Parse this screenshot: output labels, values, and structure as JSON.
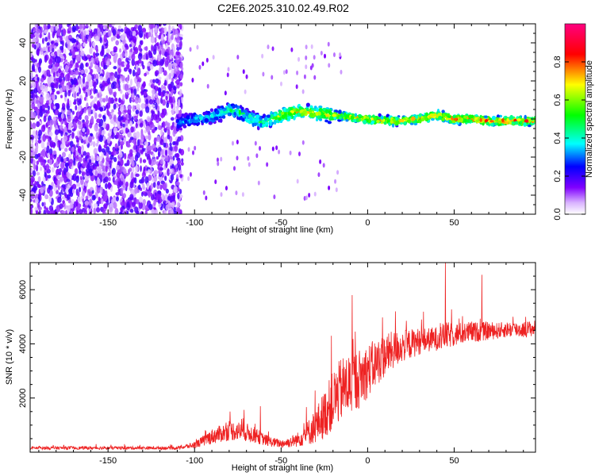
{
  "title": "C2E6.2025.310.02.49.R02",
  "chart_data": [
    {
      "type": "heatmap",
      "title": "C2E6.2025.310.02.49.R02",
      "xlabel": "Height of straight line (km)",
      "ylabel": "Frequency (Hz)",
      "xlim": [
        -195,
        97
      ],
      "ylim": [
        -50,
        50
      ],
      "xticks": [
        -150,
        -100,
        -50,
        0,
        50
      ],
      "yticks": [
        -40,
        -20,
        0,
        20,
        40
      ],
      "colorbar": {
        "label": "Normalized spectral amplitude",
        "range": [
          0.0,
          1.0
        ],
        "ticks": [
          0.0,
          0.2,
          0.4,
          0.6,
          0.8
        ],
        "tick_labels": [
          "0.0",
          "0.2",
          "0.4",
          "0.6",
          "0.8"
        ],
        "colors": [
          "#ffffff",
          "#d9b3ff",
          "#8000ff",
          "#0000ff",
          "#00ffff",
          "#00ff00",
          "#ffff00",
          "#ff0000",
          "#ff0080"
        ]
      },
      "noise_region": {
        "x_from": -195,
        "x_to": -107,
        "amplitude": 0.15
      },
      "trace": {
        "x": [
          -110,
          -100,
          -90,
          -80,
          -75,
          -70,
          -60,
          -50,
          -40,
          -30,
          -20,
          -10,
          0,
          10,
          20,
          30,
          40,
          50,
          60,
          70,
          80,
          90,
          97
        ],
        "y": [
          -2,
          0,
          1,
          5,
          4,
          1,
          -2,
          2,
          4,
          3,
          2,
          1,
          0,
          -1,
          -1,
          0,
          2,
          0,
          0,
          -1,
          -1,
          -1,
          -1
        ],
        "amplitude": [
          0.35,
          0.4,
          0.45,
          0.5,
          0.5,
          0.5,
          0.55,
          0.7,
          0.75,
          0.7,
          0.75,
          0.75,
          0.8,
          0.8,
          0.8,
          0.82,
          0.85,
          0.85,
          0.85,
          0.85,
          0.85,
          0.85,
          0.85
        ]
      }
    },
    {
      "type": "line",
      "xlabel": "Height of straight line (km)",
      "ylabel": "SNR (10 * v/v)",
      "xlim": [
        -195,
        97
      ],
      "ylim": [
        0,
        7000
      ],
      "xticks": [
        -150,
        -100,
        -50,
        0,
        50
      ],
      "yticks": [
        2000,
        4000,
        6000
      ],
      "series": [
        {
          "name": "SNR",
          "color": "#ee2222",
          "x": [
            -195,
            -150,
            -110,
            -100,
            -95,
            -90,
            -85,
            -80,
            -75,
            -70,
            -65,
            -60,
            -55,
            -50,
            -45,
            -40,
            -35,
            -30,
            -25,
            -20,
            -15,
            -10,
            -5,
            0,
            5,
            10,
            15,
            20,
            25,
            30,
            35,
            40,
            45,
            50,
            55,
            60,
            65,
            70,
            75,
            80,
            85,
            90,
            97
          ],
          "values": [
            150,
            150,
            150,
            250,
            400,
            550,
            650,
            750,
            750,
            700,
            600,
            450,
            350,
            300,
            350,
            450,
            650,
            900,
            1300,
            1800,
            2200,
            2400,
            2600,
            2900,
            3200,
            3500,
            3700,
            3850,
            3950,
            4050,
            4100,
            4150,
            4250,
            4300,
            4350,
            4400,
            4400,
            4450,
            4450,
            4500,
            4500,
            4500,
            4550
          ],
          "spread": [
            60,
            60,
            60,
            120,
            200,
            280,
            320,
            360,
            360,
            340,
            300,
            220,
            180,
            160,
            200,
            280,
            450,
            650,
            900,
            1100,
            1200,
            1200,
            1100,
            1000,
            900,
            800,
            700,
            600,
            550,
            500,
            450,
            450,
            500,
            450,
            400,
            400,
            350,
            350,
            300,
            300,
            300,
            300,
            300
          ],
          "spikes": [
            {
              "x": -80,
              "value": 1150
            },
            {
              "x": -72,
              "value": 1250
            },
            {
              "x": -62,
              "value": 1700
            },
            {
              "x": -21,
              "value": 4300
            },
            {
              "x": -9,
              "value": 5800
            },
            {
              "x": 16,
              "value": 5200
            },
            {
              "x": 45,
              "value": 7000
            },
            {
              "x": 66,
              "value": 6550
            },
            {
              "x": 84,
              "value": 5000
            }
          ]
        }
      ]
    }
  ]
}
